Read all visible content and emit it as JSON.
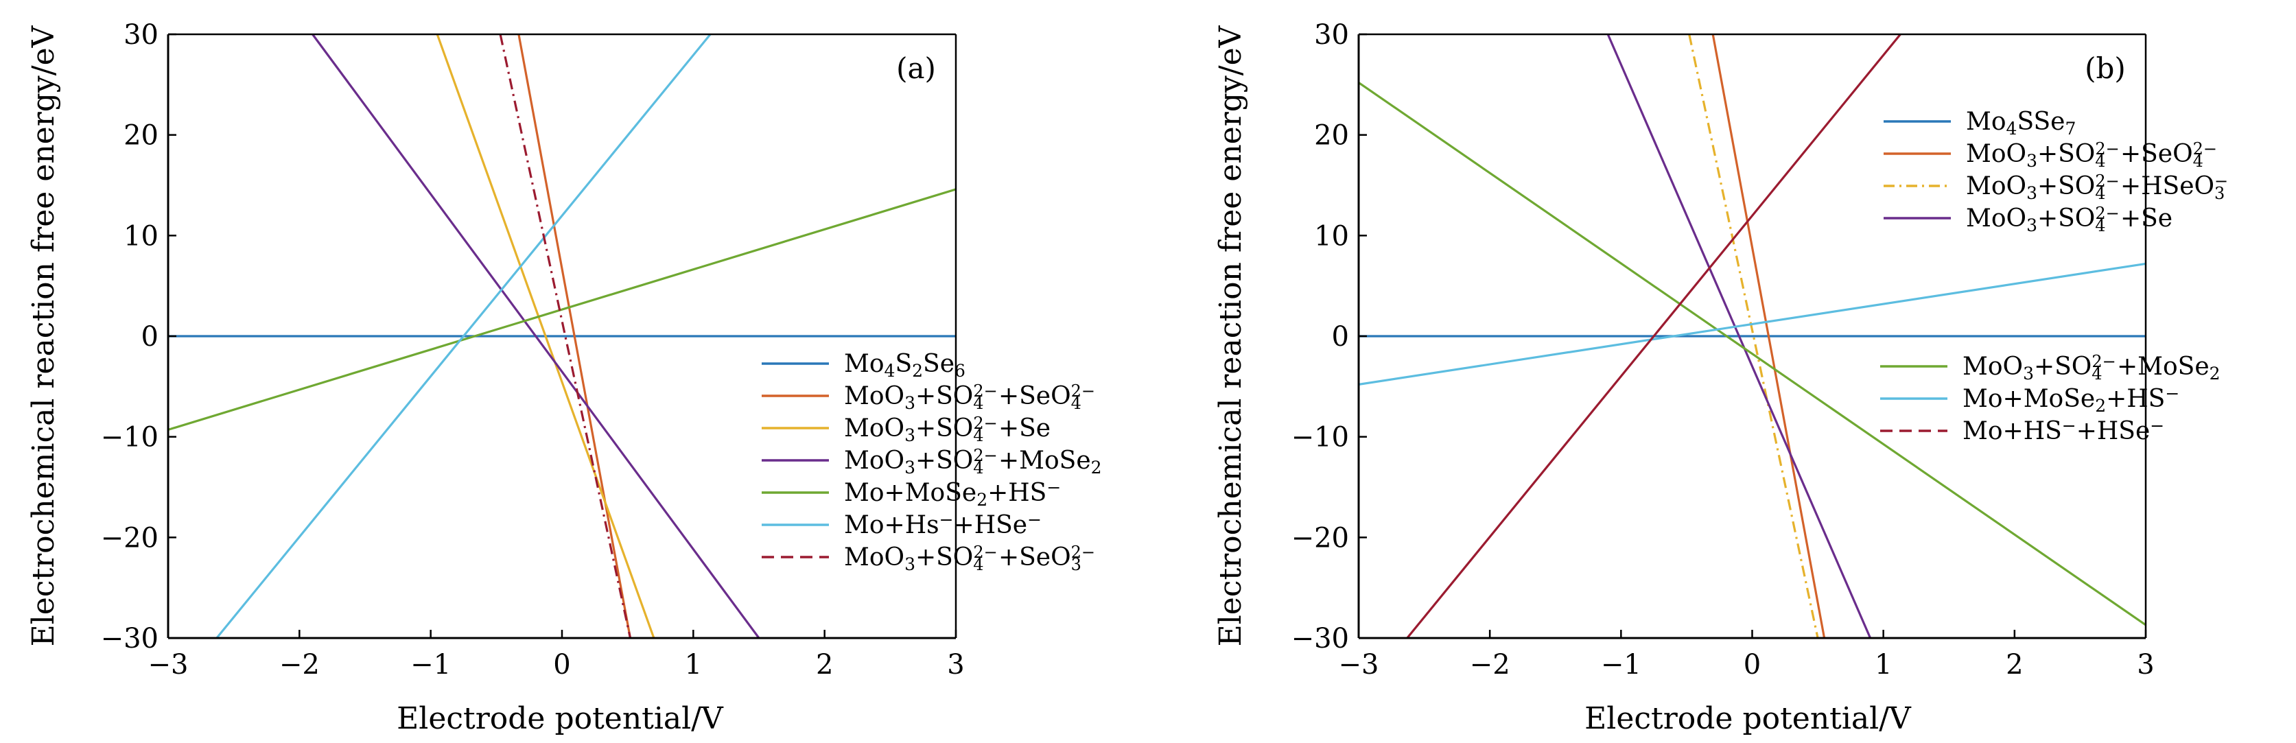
{
  "chart_data": [
    {
      "type": "line",
      "panel_label": "(a)",
      "xlabel": "Electrode potential/V",
      "ylabel": "Electrochemical reaction free energy/eV",
      "xlim": [
        -3,
        3
      ],
      "ylim": [
        -30,
        30
      ],
      "xticks": [
        "−3",
        "−2",
        "−1",
        "0",
        "1",
        "2",
        "3"
      ],
      "yticks": [
        "30",
        "20",
        "10",
        "0",
        "−10",
        "−20",
        "−30"
      ],
      "grid": false,
      "legend_position": "bottom-right",
      "series": [
        {
          "name": "Mo4S2Se6",
          "color": "#2a78b8",
          "dash": "solid",
          "points": [
            [
              -3,
              0
            ],
            [
              3,
              0
            ]
          ],
          "legend": {
            "base": "Mo",
            "parts": [
              [
                "sub",
                "4"
              ],
              [
                "t",
                "S"
              ],
              [
                "sub",
                "2"
              ],
              [
                "t",
                "Se"
              ],
              [
                "sub",
                "6"
              ]
            ]
          }
        },
        {
          "name": "MoO3+SO4^2-+SeO4^2-",
          "color": "#d3622a",
          "dash": "solid",
          "points": [
            [
              -0.33,
              30
            ],
            [
              0.52,
              -30
            ]
          ],
          "legend": {
            "base": "MoO",
            "parts": [
              [
                "sub",
                "3"
              ],
              [
                "t",
                "+SO"
              ],
              [
                "ss",
                "2−",
                "4"
              ],
              [
                "t",
                "+SeO"
              ],
              [
                "ss",
                "2−",
                "4"
              ]
            ]
          }
        },
        {
          "name": "MoO3+SO4^2-+Se",
          "color": "#e6b22c",
          "dash": "solid",
          "points": [
            [
              -0.95,
              30
            ],
            [
              0.7,
              -30
            ]
          ],
          "legend": {
            "base": "MoO",
            "parts": [
              [
                "sub",
                "3"
              ],
              [
                "t",
                "+SO"
              ],
              [
                "ss",
                "2−",
                "4"
              ],
              [
                "t",
                "+Se"
              ]
            ]
          }
        },
        {
          "name": "MoO3+SO4^2-+MoSe2",
          "color": "#6a2d8c",
          "dash": "solid",
          "points": [
            [
              -1.9,
              30
            ],
            [
              1.5,
              -30
            ]
          ],
          "legend": {
            "base": "MoO",
            "parts": [
              [
                "sub",
                "3"
              ],
              [
                "t",
                "+SO"
              ],
              [
                "ss",
                "2−",
                "4"
              ],
              [
                "t",
                "+MoSe"
              ],
              [
                "sub",
                "2"
              ]
            ]
          }
        },
        {
          "name": "Mo+MoSe2+HS-",
          "color": "#6fa832",
          "dash": "solid",
          "points": [
            [
              -3,
              -9.3
            ],
            [
              3,
              14.6
            ]
          ],
          "legend": {
            "base": "Mo+MoSe",
            "parts": [
              [
                "sub",
                "2"
              ],
              [
                "t",
                "+HS"
              ],
              [
                "sup",
                "−"
              ]
            ]
          }
        },
        {
          "name": "Mo+Hs-+HSe-",
          "color": "#5cbde0",
          "dash": "solid",
          "points": [
            [
              -2.63,
              -30
            ],
            [
              1.13,
              30
            ]
          ],
          "legend": {
            "base": "Mo+Hs",
            "parts": [
              [
                "sup",
                "−"
              ],
              [
                "t",
                "+HSe"
              ],
              [
                "sup",
                "−"
              ]
            ]
          }
        },
        {
          "name": "MoO3+SO4^2-+SeO3^2-",
          "color": "#9b1b30",
          "dash": "dashdot",
          "points": [
            [
              -0.47,
              30
            ],
            [
              0.52,
              -30
            ]
          ],
          "legend_dash": "dashed",
          "legend": {
            "base": "MoO",
            "parts": [
              [
                "sub",
                "3"
              ],
              [
                "t",
                "+SO"
              ],
              [
                "ss",
                "2−",
                "4"
              ],
              [
                "t",
                "+SeO"
              ],
              [
                "ss",
                "2−",
                "3"
              ]
            ]
          }
        }
      ]
    },
    {
      "type": "line",
      "panel_label": "(b)",
      "xlabel": "Electrode potential/V",
      "ylabel": "Electrochemical reaction free energy/eV",
      "xlim": [
        -3,
        3
      ],
      "ylim": [
        -30,
        30
      ],
      "xticks": [
        "−3",
        "−2",
        "−1",
        "0",
        "1",
        "2",
        "3"
      ],
      "yticks": [
        "30",
        "20",
        "10",
        "0",
        "−10",
        "−20",
        "−30"
      ],
      "grid": false,
      "legend_position": "right (two groups)",
      "series": [
        {
          "name": "Mo4SSe7",
          "color": "#2a78b8",
          "dash": "solid",
          "points": [
            [
              -3,
              0
            ],
            [
              3,
              0
            ]
          ],
          "legend": {
            "base": "Mo",
            "parts": [
              [
                "sub",
                "4"
              ],
              [
                "t",
                "SSe"
              ],
              [
                "sub",
                "7"
              ]
            ]
          }
        },
        {
          "name": "MoO3+SO4^2-+SeO4^2-",
          "color": "#d3622a",
          "dash": "solid",
          "points": [
            [
              -0.3,
              30
            ],
            [
              0.55,
              -30
            ]
          ],
          "legend": {
            "base": "MoO",
            "parts": [
              [
                "sub",
                "3"
              ],
              [
                "t",
                "+SO"
              ],
              [
                "ss",
                "2−",
                "4"
              ],
              [
                "t",
                "+SeO"
              ],
              [
                "ss",
                "2−",
                "4"
              ]
            ]
          }
        },
        {
          "name": "MoO3+SO4^2-+HSeO3^-",
          "color": "#e6b22c",
          "dash": "dashdot",
          "points": [
            [
              -0.48,
              30
            ],
            [
              0.5,
              -30
            ]
          ],
          "legend": {
            "base": "MoO",
            "parts": [
              [
                "sub",
                "3"
              ],
              [
                "t",
                "+SO"
              ],
              [
                "ss",
                "2−",
                "4"
              ],
              [
                "t",
                "+HSeO"
              ],
              [
                "ss",
                "−",
                "3"
              ]
            ]
          }
        },
        {
          "name": "MoO3+SO4^2-+Se",
          "color": "#6a2d8c",
          "dash": "solid",
          "points": [
            [
              -1.1,
              30
            ],
            [
              0.9,
              -30
            ]
          ],
          "legend": {
            "base": "MoO",
            "parts": [
              [
                "sub",
                "3"
              ],
              [
                "t",
                "+SO"
              ],
              [
                "ss",
                "2−",
                "4"
              ],
              [
                "t",
                "+Se"
              ]
            ]
          }
        },
        {
          "name": "MoO3+SO4^2-+MoSe2",
          "color": "#6fa832",
          "dash": "solid",
          "points": [
            [
              -3,
              25.2
            ],
            [
              3,
              -28.7
            ]
          ],
          "legend": {
            "base": "MoO",
            "parts": [
              [
                "sub",
                "3"
              ],
              [
                "t",
                "+SO"
              ],
              [
                "ss",
                "2−",
                "4"
              ],
              [
                "t",
                "+MoSe"
              ],
              [
                "sub",
                "2"
              ]
            ]
          }
        },
        {
          "name": "Mo+MoSe2+HS-",
          "color": "#5cbde0",
          "dash": "solid",
          "points": [
            [
              -3,
              -4.8
            ],
            [
              3,
              7.2
            ]
          ],
          "legend": {
            "base": "Mo+MoSe",
            "parts": [
              [
                "sub",
                "2"
              ],
              [
                "t",
                "+HS"
              ],
              [
                "sup",
                "−"
              ]
            ]
          }
        },
        {
          "name": "Mo+HS-+HSe-",
          "color": "#9b1b30",
          "dash": "solid",
          "points": [
            [
              -2.63,
              -30
            ],
            [
              1.13,
              30
            ]
          ],
          "legend_dash": "dashed",
          "legend": {
            "base": "Mo+HS",
            "parts": [
              [
                "sup",
                "−"
              ],
              [
                "t",
                "+HSe"
              ],
              [
                "sup",
                "−"
              ]
            ]
          }
        }
      ]
    }
  ]
}
